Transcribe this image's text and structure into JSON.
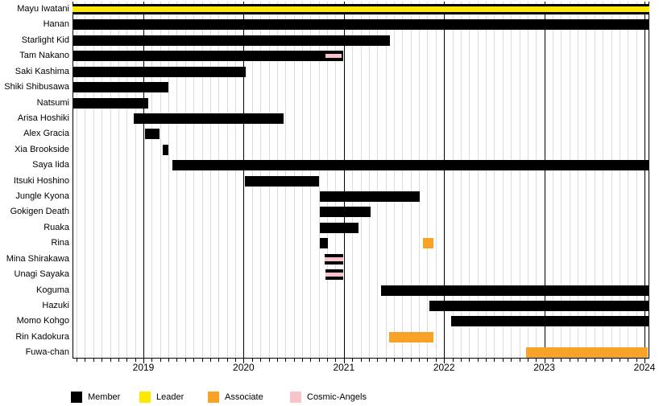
{
  "legend": [
    {
      "label": "Member",
      "color": "#000000",
      "role": "member"
    },
    {
      "label": "Leader",
      "color": "#FFE800",
      "role": "leader"
    },
    {
      "label": "Associate",
      "color": "#F9A228",
      "role": "associate"
    },
    {
      "label": "Cosmic-Angels",
      "color": "#F8C3CB",
      "role": "cosmic_angels"
    }
  ],
  "chart_data": {
    "type": "gantt",
    "title": "",
    "x_axis": {
      "start": 2018.29,
      "end": 2024.05,
      "year_ticks": [
        2019,
        2020,
        2021,
        2022,
        2023,
        2024
      ],
      "grid": "monthly"
    },
    "role_colors": {
      "member": "#000000",
      "leader": "#FFE800",
      "associate": "#F9A228",
      "cosmic_angels": "#F8C3CB"
    },
    "rows": [
      {
        "name": "Mayu Iwatani",
        "bars": [
          {
            "start": 2018.29,
            "end": 2024.05,
            "role": "member",
            "overlay": {
              "start": 2018.29,
              "end": 2024.05,
              "role": "leader"
            }
          }
        ]
      },
      {
        "name": "Hanan",
        "bars": [
          {
            "start": 2018.29,
            "end": 2024.05,
            "role": "member"
          }
        ]
      },
      {
        "name": "Starlight Kid",
        "bars": [
          {
            "start": 2018.29,
            "end": 2021.46,
            "role": "member"
          }
        ]
      },
      {
        "name": "Tam Nakano",
        "bars": [
          {
            "start": 2018.29,
            "end": 2020.99,
            "role": "member",
            "overlay": {
              "start": 2020.82,
              "end": 2020.98,
              "role": "cosmic_angels"
            }
          }
        ]
      },
      {
        "name": "Saki Kashima",
        "bars": [
          {
            "start": 2018.29,
            "end": 2020.02,
            "role": "member"
          }
        ]
      },
      {
        "name": "Shiki Shibusawa",
        "bars": [
          {
            "start": 2018.29,
            "end": 2019.25,
            "role": "member"
          }
        ]
      },
      {
        "name": "Natsumi",
        "bars": [
          {
            "start": 2018.29,
            "end": 2019.05,
            "role": "member"
          }
        ]
      },
      {
        "name": "Arisa Hoshiki",
        "bars": [
          {
            "start": 2018.9,
            "end": 2020.4,
            "role": "member"
          }
        ]
      },
      {
        "name": "Alex Gracia",
        "bars": [
          {
            "start": 2019.02,
            "end": 2019.16,
            "role": "member"
          }
        ]
      },
      {
        "name": "Xia Brookside",
        "bars": [
          {
            "start": 2019.19,
            "end": 2019.25,
            "role": "member"
          }
        ]
      },
      {
        "name": "Saya Iida",
        "bars": [
          {
            "start": 2019.29,
            "end": 2024.05,
            "role": "member"
          }
        ]
      },
      {
        "name": "Itsuki Hoshino",
        "bars": [
          {
            "start": 2020.01,
            "end": 2020.75,
            "role": "member"
          }
        ]
      },
      {
        "name": "Jungle Kyona",
        "bars": [
          {
            "start": 2020.76,
            "end": 2021.76,
            "role": "member"
          }
        ]
      },
      {
        "name": "Gokigen Death",
        "bars": [
          {
            "start": 2020.76,
            "end": 2021.27,
            "role": "member"
          }
        ]
      },
      {
        "name": "Ruaka",
        "bars": [
          {
            "start": 2020.76,
            "end": 2021.15,
            "role": "member"
          }
        ]
      },
      {
        "name": "Rina",
        "bars": [
          {
            "start": 2020.76,
            "end": 2020.84,
            "role": "member"
          },
          {
            "start": 2021.79,
            "end": 2021.89,
            "role": "associate"
          }
        ]
      },
      {
        "name": "Mina Shirakawa",
        "bars": [
          {
            "start": 2020.81,
            "end": 2020.99,
            "role": "member",
            "overlay": {
              "start": 2020.81,
              "end": 2020.99,
              "role": "cosmic_angels"
            }
          }
        ]
      },
      {
        "name": "Unagi Sayaka",
        "bars": [
          {
            "start": 2020.82,
            "end": 2020.99,
            "role": "member",
            "overlay": {
              "start": 2020.82,
              "end": 2020.99,
              "role": "cosmic_angels"
            }
          }
        ]
      },
      {
        "name": "Koguma",
        "bars": [
          {
            "start": 2021.37,
            "end": 2024.05,
            "role": "member"
          }
        ]
      },
      {
        "name": "Hazuki",
        "bars": [
          {
            "start": 2021.85,
            "end": 2024.05,
            "role": "member"
          }
        ]
      },
      {
        "name": "Momo Kohgo",
        "bars": [
          {
            "start": 2022.07,
            "end": 2024.05,
            "role": "member"
          }
        ]
      },
      {
        "name": "Rin Kadokura",
        "bars": [
          {
            "start": 2021.45,
            "end": 2021.89,
            "role": "associate"
          }
        ]
      },
      {
        "name": "Fuwa-chan",
        "bars": [
          {
            "start": 2022.82,
            "end": 2024.03,
            "role": "associate"
          }
        ]
      }
    ]
  }
}
